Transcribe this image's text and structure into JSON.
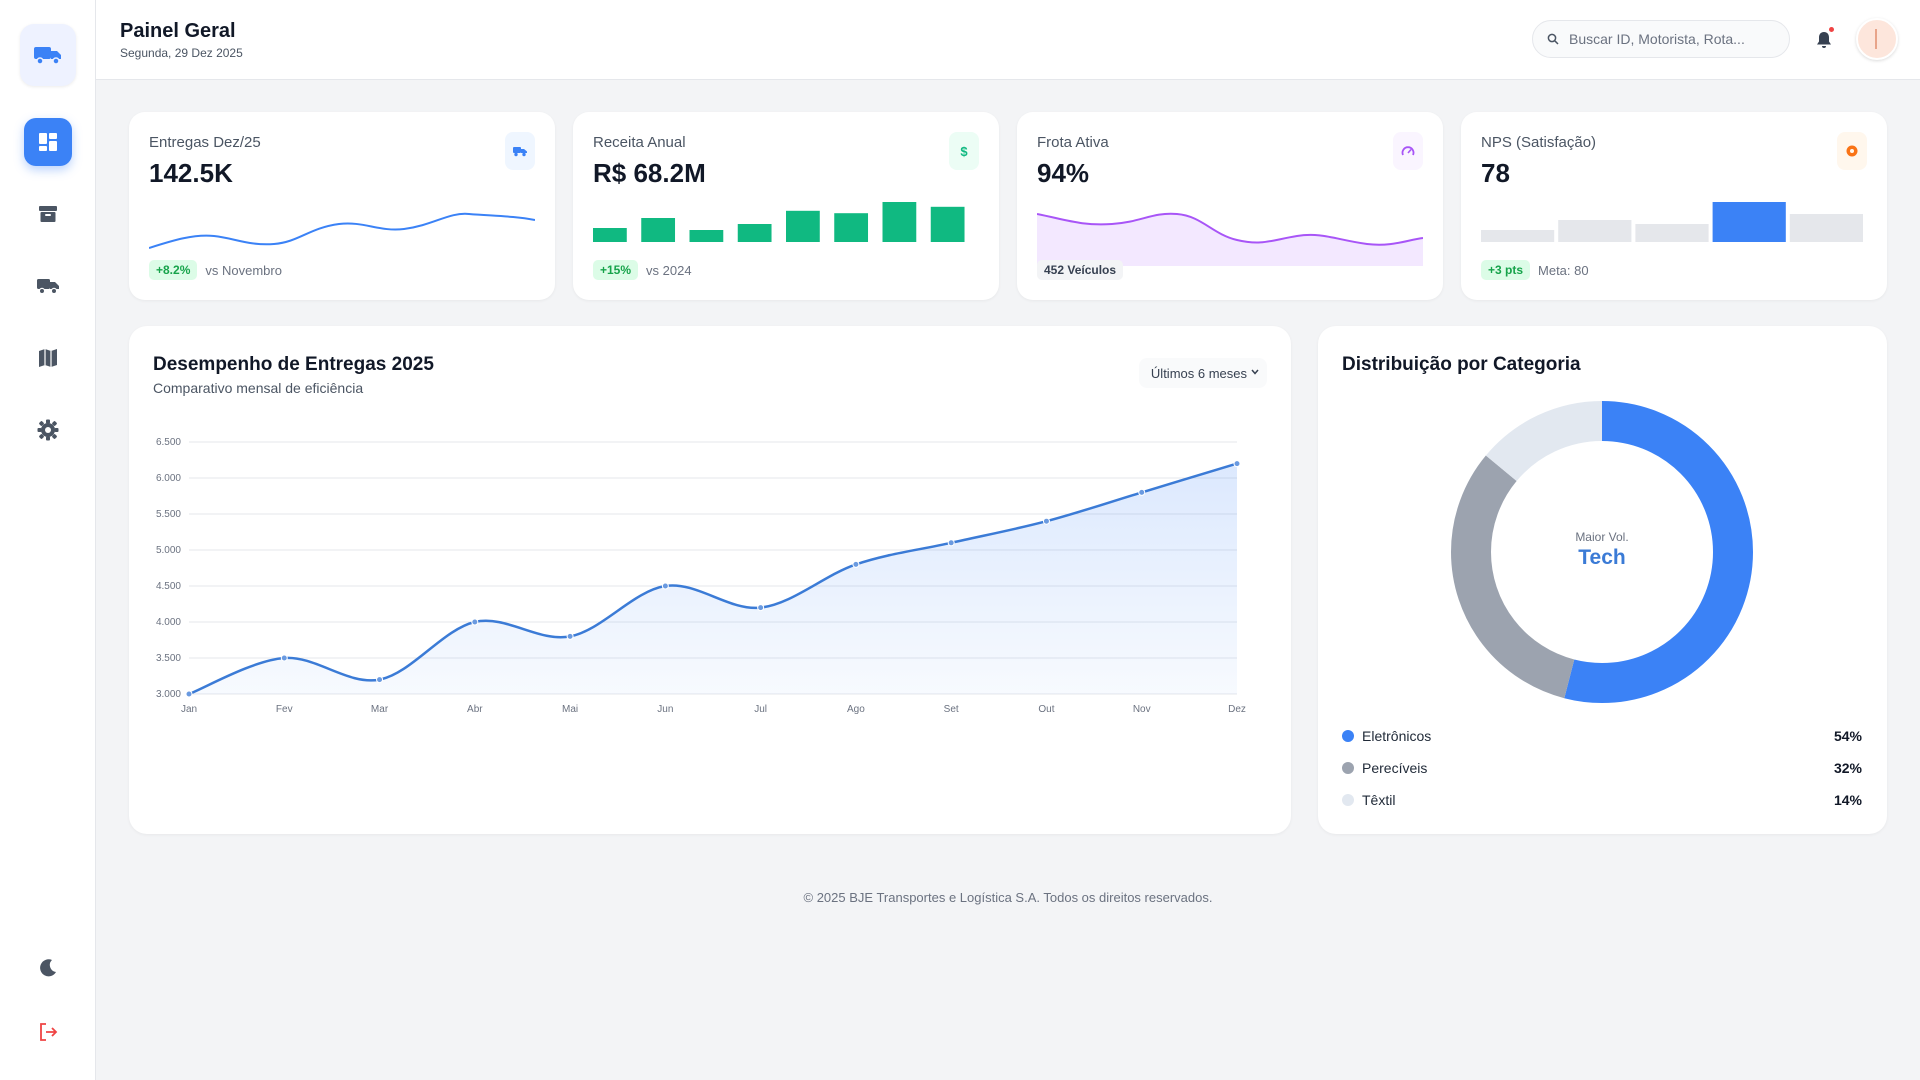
{
  "header": {
    "title": "Painel Geral",
    "date": "Segunda, 29 Dez 2025",
    "search_placeholder": "Buscar ID, Motorista, Rota..."
  },
  "sidebar": {
    "items": [
      "dashboard",
      "inventory",
      "fleet",
      "map",
      "settings"
    ],
    "active": "dashboard"
  },
  "kpis": [
    {
      "label": "Entregas Dez/25",
      "value": "142.5K",
      "badge": "+8.2%",
      "note": "vs Novembro",
      "color": "#3b82f6"
    },
    {
      "label": "Receita Anual",
      "value": "R$ 68.2M",
      "badge": "+15%",
      "note": "vs 2024",
      "color": "#10b981",
      "bars": [
        0.35,
        0.6,
        0.3,
        0.45,
        0.78,
        0.72,
        1.0,
        0.88
      ]
    },
    {
      "label": "Frota Ativa",
      "value": "94%",
      "badge": "452 Veículos",
      "note": "",
      "color": "#a855f7"
    },
    {
      "label": "NPS (Satisfação)",
      "value": "78",
      "badge": "+3 pts",
      "note": "Meta: 80",
      "color": "#f97316",
      "bars": [
        0.3,
        0.55,
        0.45,
        1.0,
        0.7
      ],
      "highlight_index": 3
    }
  ],
  "colors": {
    "primary": "#3b82f6",
    "green": "#10b981",
    "purple": "#a855f7",
    "orange": "#f97316",
    "gray": "#9ca3af",
    "light_gray": "#e2e8f0"
  },
  "main_chart": {
    "title": "Desempenho de Entregas 2025",
    "subtitle": "Comparativo mensal de eficiência",
    "range": "Últimos 6 meses"
  },
  "donut": {
    "title": "Distribuição por Categoria",
    "center_label": "Maior Vol.",
    "center_value": "Tech"
  },
  "legend": [
    {
      "name": "Eletrônicos",
      "pct": "54%",
      "color": "#3b82f6"
    },
    {
      "name": "Perecíveis",
      "pct": "32%",
      "color": "#9ca3af"
    },
    {
      "name": "Têxtil",
      "pct": "14%",
      "color": "#e2e8f0"
    }
  ],
  "footer": "© 2025 BJE Transportes e Logística S.A. Todos os direitos reservados.",
  "chart_data": [
    {
      "type": "area",
      "title": "Desempenho de Entregas 2025",
      "categories": [
        "Jan",
        "Fev",
        "Mar",
        "Abr",
        "Mai",
        "Jun",
        "Jul",
        "Ago",
        "Set",
        "Out",
        "Nov",
        "Dez"
      ],
      "values": [
        3000,
        3500,
        3200,
        4000,
        3800,
        4500,
        4200,
        4800,
        5100,
        5400,
        5800,
        6200
      ],
      "ylim": [
        3000,
        6500
      ],
      "yticks": [
        "3.000",
        "3.500",
        "4.000",
        "4.500",
        "5.000",
        "5.500",
        "6.000",
        "6.500"
      ],
      "ytick_values": [
        3000,
        3500,
        4000,
        4500,
        5000,
        5500,
        6000,
        6500
      ]
    },
    {
      "type": "pie",
      "title": "Distribuição por Categoria",
      "categories": [
        "Eletrônicos",
        "Perecíveis",
        "Têxtil"
      ],
      "values": [
        54,
        32,
        14
      ]
    }
  ]
}
